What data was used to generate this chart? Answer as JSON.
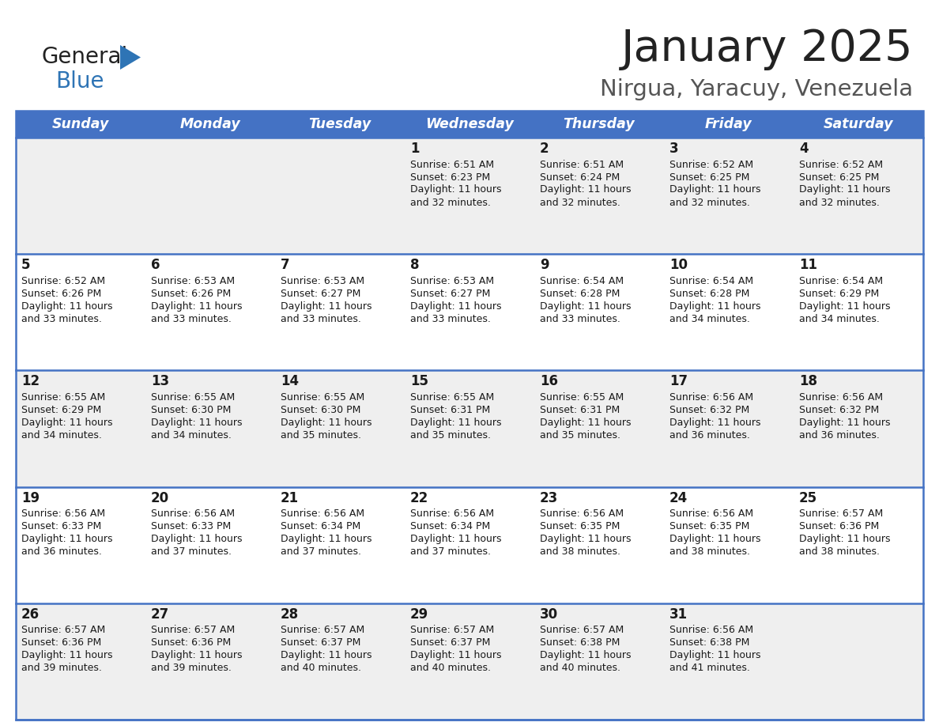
{
  "title": "January 2025",
  "subtitle": "Nirgua, Yaracuy, Venezuela",
  "header_bg": "#4472C4",
  "header_text_color": "#FFFFFF",
  "cell_bg_odd": "#EFEFEF",
  "cell_bg_even": "#FFFFFF",
  "grid_line_color": "#4472C4",
  "day_headers": [
    "Sunday",
    "Monday",
    "Tuesday",
    "Wednesday",
    "Thursday",
    "Friday",
    "Saturday"
  ],
  "weeks": [
    {
      "days": [
        {
          "date": "",
          "sunrise": "",
          "sunset": "",
          "daylight": ""
        },
        {
          "date": "",
          "sunrise": "",
          "sunset": "",
          "daylight": ""
        },
        {
          "date": "",
          "sunrise": "",
          "sunset": "",
          "daylight": ""
        },
        {
          "date": "1",
          "sunrise": "6:51 AM",
          "sunset": "6:23 PM",
          "daylight": "11 hours and 32 minutes."
        },
        {
          "date": "2",
          "sunrise": "6:51 AM",
          "sunset": "6:24 PM",
          "daylight": "11 hours and 32 minutes."
        },
        {
          "date": "3",
          "sunrise": "6:52 AM",
          "sunset": "6:25 PM",
          "daylight": "11 hours and 32 minutes."
        },
        {
          "date": "4",
          "sunrise": "6:52 AM",
          "sunset": "6:25 PM",
          "daylight": "11 hours and 32 minutes."
        }
      ]
    },
    {
      "days": [
        {
          "date": "5",
          "sunrise": "6:52 AM",
          "sunset": "6:26 PM",
          "daylight": "11 hours and 33 minutes."
        },
        {
          "date": "6",
          "sunrise": "6:53 AM",
          "sunset": "6:26 PM",
          "daylight": "11 hours and 33 minutes."
        },
        {
          "date": "7",
          "sunrise": "6:53 AM",
          "sunset": "6:27 PM",
          "daylight": "11 hours and 33 minutes."
        },
        {
          "date": "8",
          "sunrise": "6:53 AM",
          "sunset": "6:27 PM",
          "daylight": "11 hours and 33 minutes."
        },
        {
          "date": "9",
          "sunrise": "6:54 AM",
          "sunset": "6:28 PM",
          "daylight": "11 hours and 33 minutes."
        },
        {
          "date": "10",
          "sunrise": "6:54 AM",
          "sunset": "6:28 PM",
          "daylight": "11 hours and 34 minutes."
        },
        {
          "date": "11",
          "sunrise": "6:54 AM",
          "sunset": "6:29 PM",
          "daylight": "11 hours and 34 minutes."
        }
      ]
    },
    {
      "days": [
        {
          "date": "12",
          "sunrise": "6:55 AM",
          "sunset": "6:29 PM",
          "daylight": "11 hours and 34 minutes."
        },
        {
          "date": "13",
          "sunrise": "6:55 AM",
          "sunset": "6:30 PM",
          "daylight": "11 hours and 34 minutes."
        },
        {
          "date": "14",
          "sunrise": "6:55 AM",
          "sunset": "6:30 PM",
          "daylight": "11 hours and 35 minutes."
        },
        {
          "date": "15",
          "sunrise": "6:55 AM",
          "sunset": "6:31 PM",
          "daylight": "11 hours and 35 minutes."
        },
        {
          "date": "16",
          "sunrise": "6:55 AM",
          "sunset": "6:31 PM",
          "daylight": "11 hours and 35 minutes."
        },
        {
          "date": "17",
          "sunrise": "6:56 AM",
          "sunset": "6:32 PM",
          "daylight": "11 hours and 36 minutes."
        },
        {
          "date": "18",
          "sunrise": "6:56 AM",
          "sunset": "6:32 PM",
          "daylight": "11 hours and 36 minutes."
        }
      ]
    },
    {
      "days": [
        {
          "date": "19",
          "sunrise": "6:56 AM",
          "sunset": "6:33 PM",
          "daylight": "11 hours and 36 minutes."
        },
        {
          "date": "20",
          "sunrise": "6:56 AM",
          "sunset": "6:33 PM",
          "daylight": "11 hours and 37 minutes."
        },
        {
          "date": "21",
          "sunrise": "6:56 AM",
          "sunset": "6:34 PM",
          "daylight": "11 hours and 37 minutes."
        },
        {
          "date": "22",
          "sunrise": "6:56 AM",
          "sunset": "6:34 PM",
          "daylight": "11 hours and 37 minutes."
        },
        {
          "date": "23",
          "sunrise": "6:56 AM",
          "sunset": "6:35 PM",
          "daylight": "11 hours and 38 minutes."
        },
        {
          "date": "24",
          "sunrise": "6:56 AM",
          "sunset": "6:35 PM",
          "daylight": "11 hours and 38 minutes."
        },
        {
          "date": "25",
          "sunrise": "6:57 AM",
          "sunset": "6:36 PM",
          "daylight": "11 hours and 38 minutes."
        }
      ]
    },
    {
      "days": [
        {
          "date": "26",
          "sunrise": "6:57 AM",
          "sunset": "6:36 PM",
          "daylight": "11 hours and 39 minutes."
        },
        {
          "date": "27",
          "sunrise": "6:57 AM",
          "sunset": "6:36 PM",
          "daylight": "11 hours and 39 minutes."
        },
        {
          "date": "28",
          "sunrise": "6:57 AM",
          "sunset": "6:37 PM",
          "daylight": "11 hours and 40 minutes."
        },
        {
          "date": "29",
          "sunrise": "6:57 AM",
          "sunset": "6:37 PM",
          "daylight": "11 hours and 40 minutes."
        },
        {
          "date": "30",
          "sunrise": "6:57 AM",
          "sunset": "6:38 PM",
          "daylight": "11 hours and 40 minutes."
        },
        {
          "date": "31",
          "sunrise": "6:56 AM",
          "sunset": "6:38 PM",
          "daylight": "11 hours and 41 minutes."
        },
        {
          "date": "",
          "sunrise": "",
          "sunset": "",
          "daylight": ""
        }
      ]
    }
  ],
  "logo_text1_color": "#222222",
  "logo_text2_color": "#2E74B5",
  "logo_triangle_color": "#2E74B5",
  "title_color": "#222222",
  "subtitle_color": "#555555"
}
